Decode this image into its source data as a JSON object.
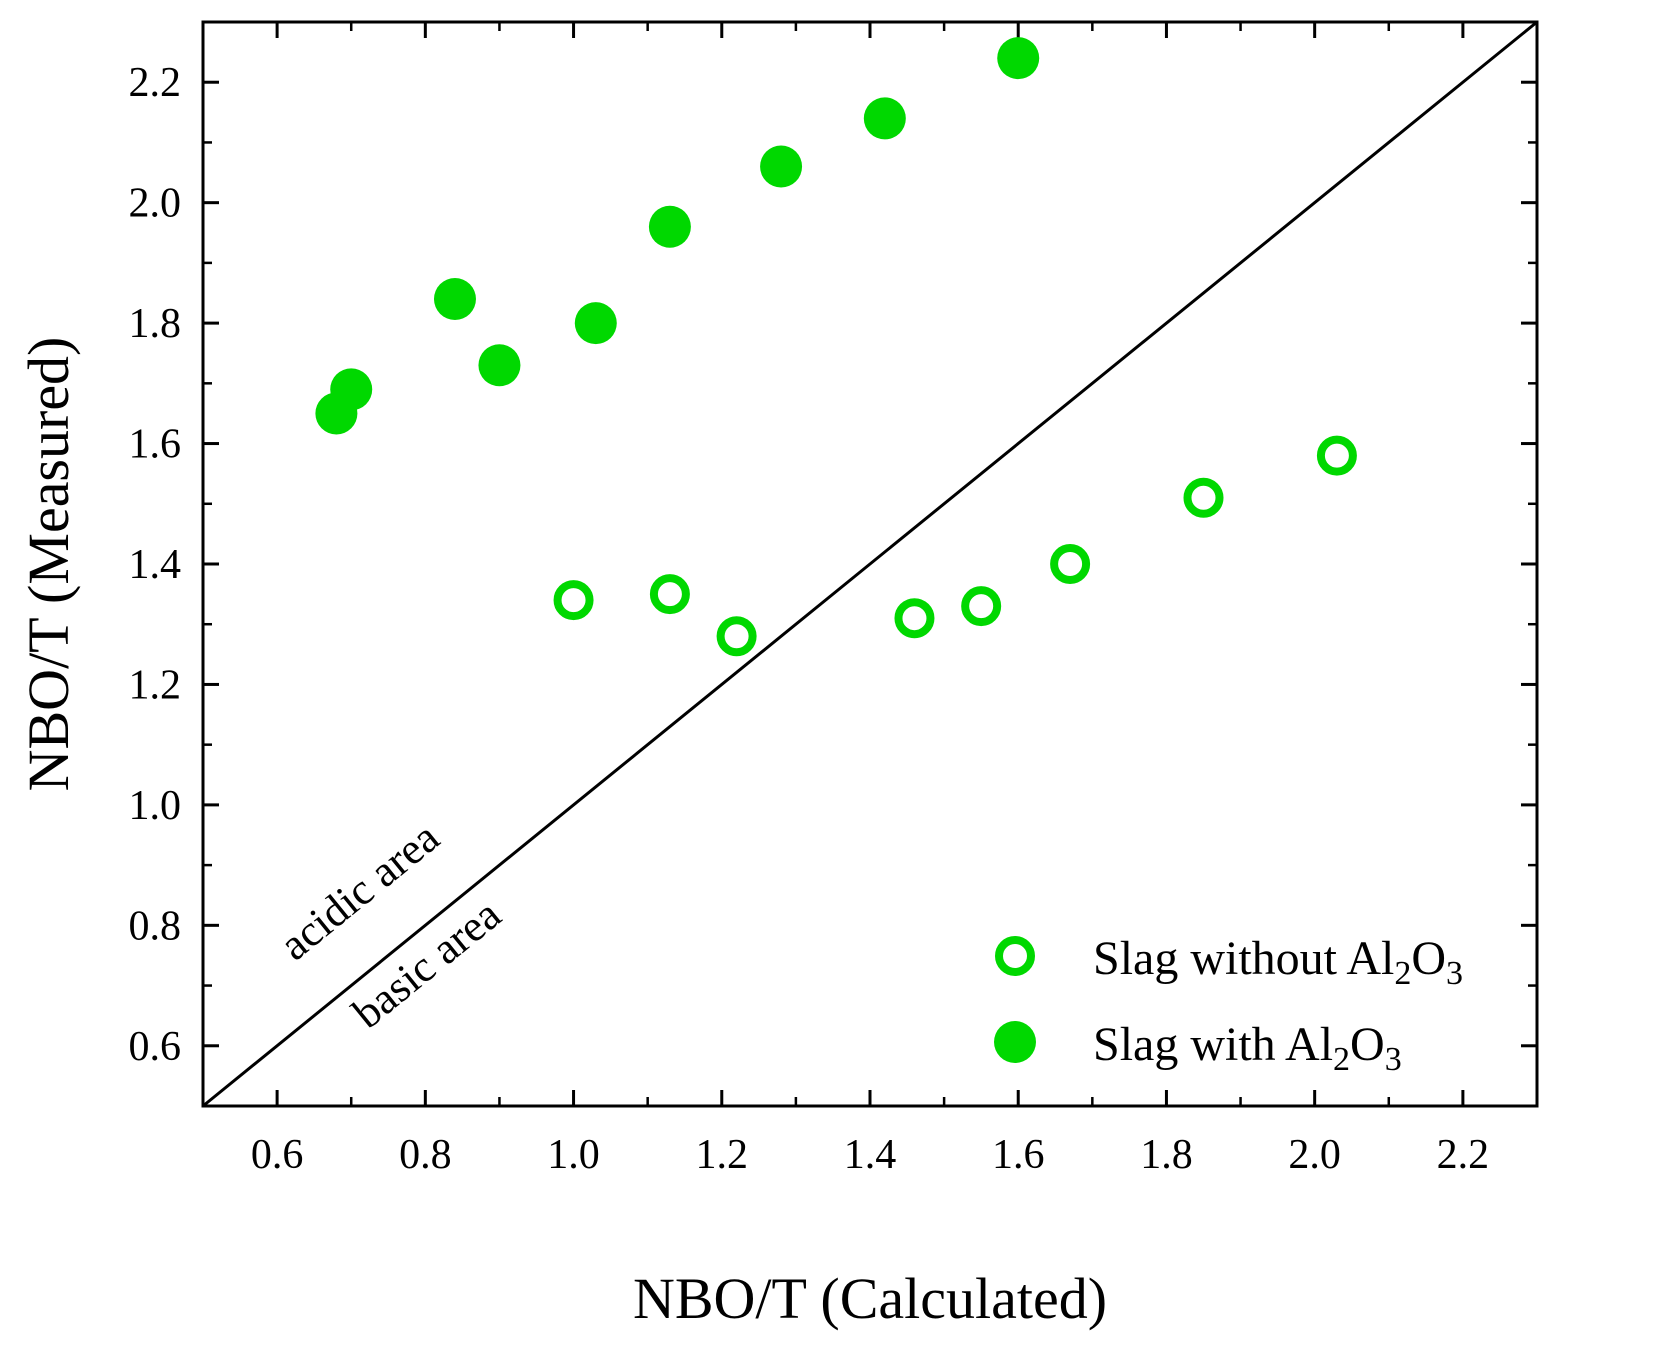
{
  "chart_data": {
    "type": "scatter",
    "xlabel": "NBO/T (Calculated)",
    "ylabel": "NBO/T (Measured)",
    "xlim": [
      0.5,
      2.3
    ],
    "ylim": [
      0.5,
      2.3
    ],
    "xticks": [
      0.6,
      0.8,
      1.0,
      1.2,
      1.4,
      1.6,
      1.8,
      2.0,
      2.2
    ],
    "yticks": [
      0.6,
      0.8,
      1.0,
      1.2,
      1.4,
      1.6,
      1.8,
      2.0,
      2.2
    ],
    "xtick_labels": [
      "0.6",
      "0.8",
      "1.0",
      "1.2",
      "1.4",
      "1.6",
      "1.8",
      "2.0",
      "2.2"
    ],
    "ytick_labels": [
      "0.6",
      "0.8",
      "1.0",
      "1.2",
      "1.4",
      "1.6",
      "1.8",
      "2.0",
      "2.2"
    ],
    "grid": false,
    "legend_position": "bottom-right",
    "colors": {
      "marker": "#00d800",
      "axis": "#000000",
      "line": "#000000"
    },
    "reference_line": {
      "x": [
        0.5,
        2.3
      ],
      "y": [
        0.5,
        2.3
      ]
    },
    "annotations": [
      "acidic area",
      "basic area"
    ],
    "series": [
      {
        "name": "Slag without Al2O3",
        "legend_parts": {
          "a": "Slag without Al",
          "s1": "2",
          "b": "O",
          "s2": "3"
        },
        "marker": "open-circle",
        "x": [
          1.0,
          1.13,
          1.22,
          1.46,
          1.55,
          1.67,
          1.85,
          2.03
        ],
        "y": [
          1.34,
          1.35,
          1.28,
          1.31,
          1.33,
          1.4,
          1.51,
          1.58
        ]
      },
      {
        "name": "Slag with Al2O3",
        "legend_parts": {
          "a": "Slag with Al",
          "s1": "2",
          "b": "O",
          "s2": "3"
        },
        "marker": "filled-circle",
        "x": [
          0.68,
          0.7,
          0.84,
          0.9,
          1.03,
          1.13,
          1.28,
          1.42,
          1.6
        ],
        "y": [
          1.65,
          1.69,
          1.84,
          1.73,
          1.8,
          1.96,
          2.06,
          2.14,
          2.24
        ]
      }
    ]
  }
}
